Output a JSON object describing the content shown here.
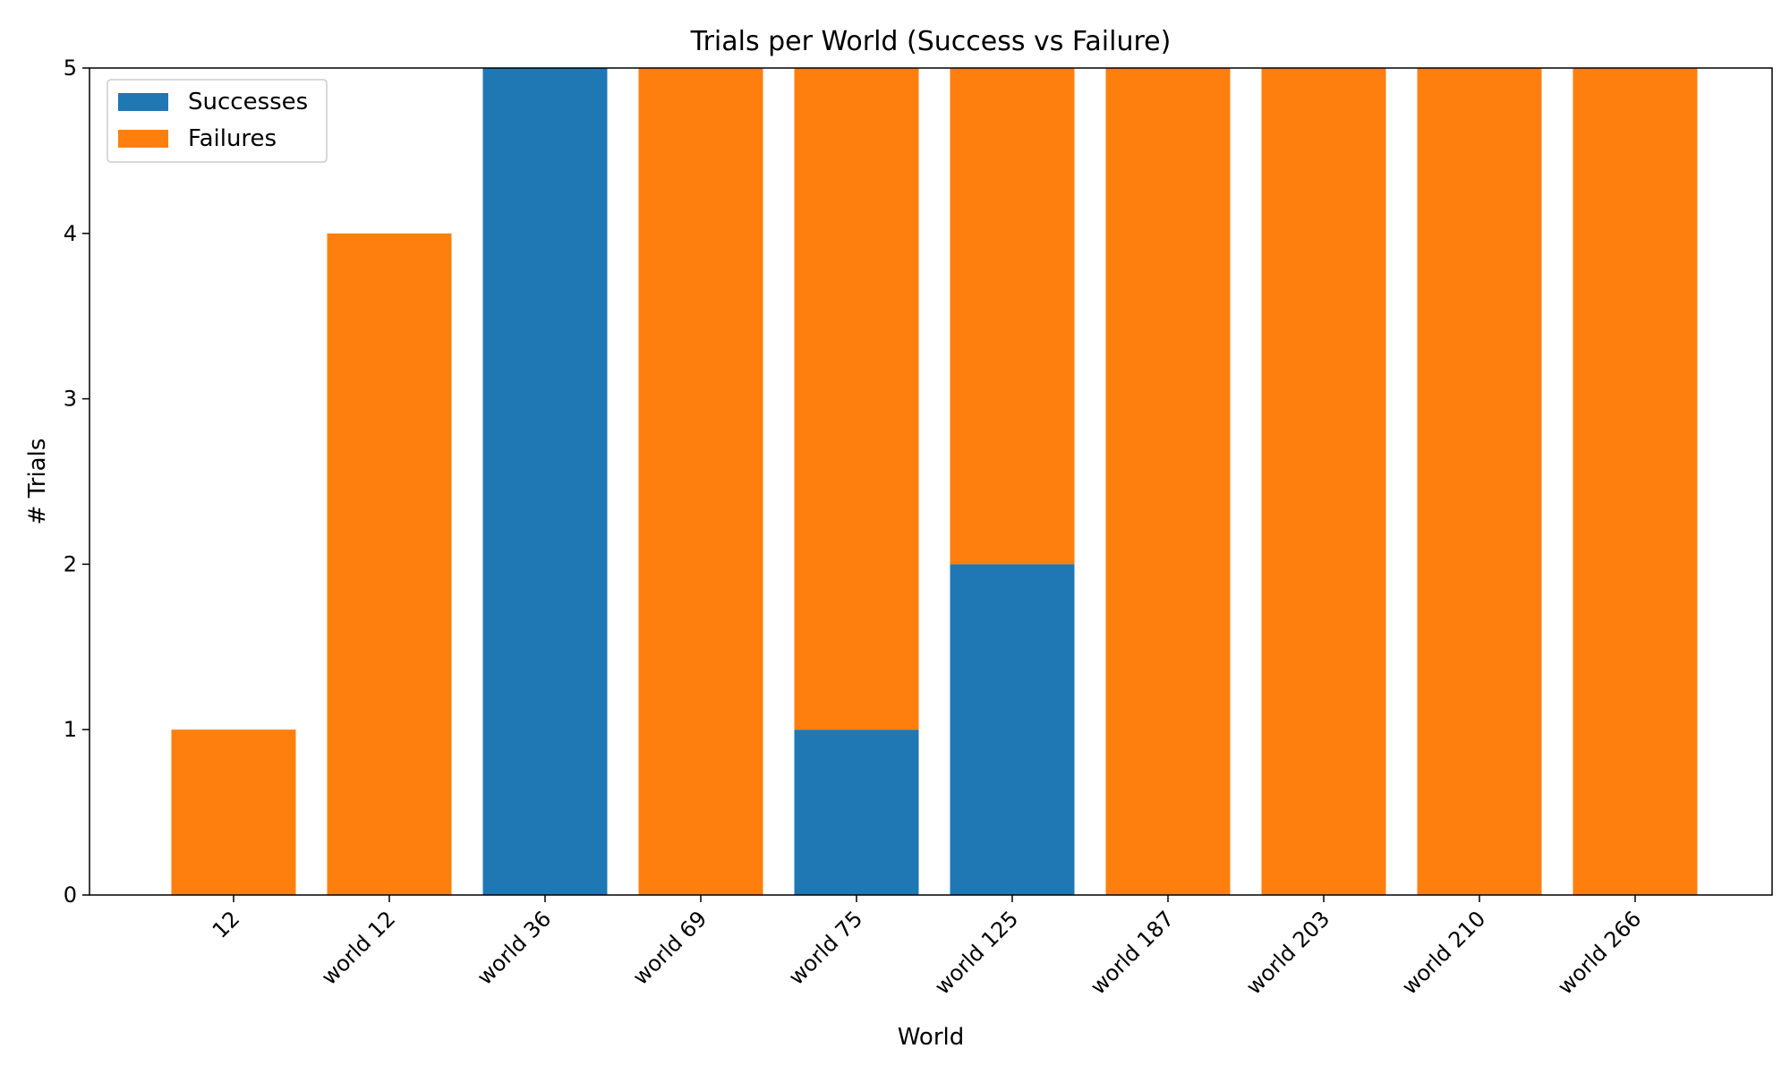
{
  "chart_data": {
    "type": "bar",
    "stacked": true,
    "title": "Trials per World (Success vs Failure)",
    "xlabel": "World",
    "ylabel": "# Trials",
    "ylim": [
      0,
      5
    ],
    "yticks": [
      0,
      1,
      2,
      3,
      4,
      5
    ],
    "categories": [
      "12",
      "world 12",
      "world 36",
      "world 69",
      "world 75",
      "world 125",
      "world 187",
      "world 203",
      "world 210",
      "world 266"
    ],
    "series": [
      {
        "name": "Successes",
        "color": "#1f77b4",
        "values": [
          0,
          0,
          5,
          0,
          1,
          2,
          0,
          0,
          0,
          0
        ]
      },
      {
        "name": "Failures",
        "color": "#ff7f0e",
        "values": [
          1,
          4,
          0,
          5,
          4,
          3,
          5,
          5,
          5,
          5
        ]
      }
    ],
    "legend_position": "top-left",
    "grid": false
  }
}
